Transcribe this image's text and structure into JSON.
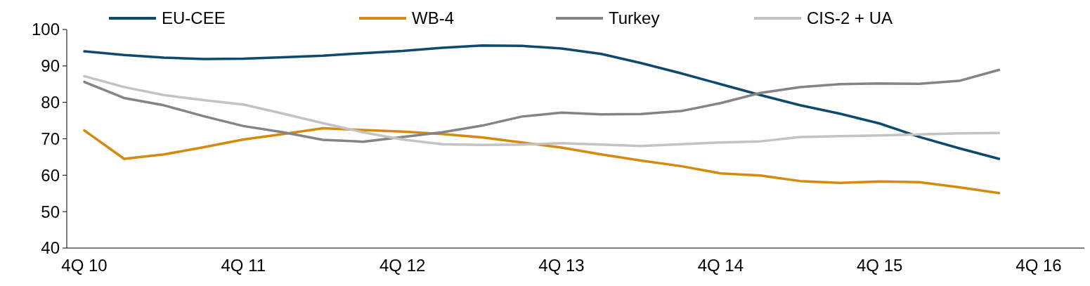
{
  "chart_data": {
    "type": "line",
    "categories": [
      "4Q 10",
      null,
      null,
      null,
      "4Q 11",
      null,
      null,
      null,
      "4Q 12",
      null,
      null,
      null,
      "4Q 13",
      null,
      null,
      null,
      "4Q 14",
      null,
      null,
      null,
      "4Q 15",
      null,
      null,
      null,
      "4Q 16"
    ],
    "series": [
      {
        "name": "EU-CEE",
        "color": "#0e4a6e",
        "values": [
          94,
          93,
          92.3,
          91.9,
          92,
          92.4,
          92.8,
          93.5,
          94.1,
          95,
          95.6,
          95.5,
          94.8,
          93.3,
          90.8,
          88,
          85,
          82,
          79.2,
          76.9,
          74.2,
          70.5,
          67.4,
          64.5,
          null
        ]
      },
      {
        "name": "WB-4",
        "color": "#d48a0f",
        "values": [
          72.3,
          64.5,
          65.7,
          67.7,
          69.8,
          71.3,
          72.9,
          72.4,
          72,
          71.3,
          70.4,
          69,
          67.6,
          65.7,
          64,
          62.5,
          60.5,
          59.9,
          58.4,
          57.9,
          58.3,
          58.1,
          56.7,
          55.1,
          null
        ]
      },
      {
        "name": "Turkey",
        "color": "#848484",
        "values": [
          85.6,
          81.2,
          79.2,
          76.2,
          73.5,
          71.8,
          69.7,
          69.2,
          70.5,
          71.8,
          73.6,
          76.1,
          77.2,
          76.7,
          76.8,
          77.6,
          79.8,
          82.6,
          84.2,
          85,
          85.2,
          85.1,
          85.9,
          88.9,
          null
        ]
      },
      {
        "name": "CIS-2 + UA",
        "color": "#c3c3c3",
        "values": [
          87.2,
          84.2,
          82,
          80.6,
          79.4,
          76.9,
          74.3,
          71.8,
          69.8,
          68.5,
          68.3,
          68.4,
          68.8,
          68.4,
          68,
          68.5,
          69,
          69.3,
          70.5,
          70.7,
          70.9,
          71.2,
          71.5,
          71.6,
          null
        ]
      }
    ],
    "ylim": [
      40,
      100
    ],
    "yticks": [
      40,
      50,
      60,
      70,
      80,
      90,
      100
    ],
    "grid": false,
    "legend": "top",
    "marker": "none",
    "line_style": "solid"
  }
}
